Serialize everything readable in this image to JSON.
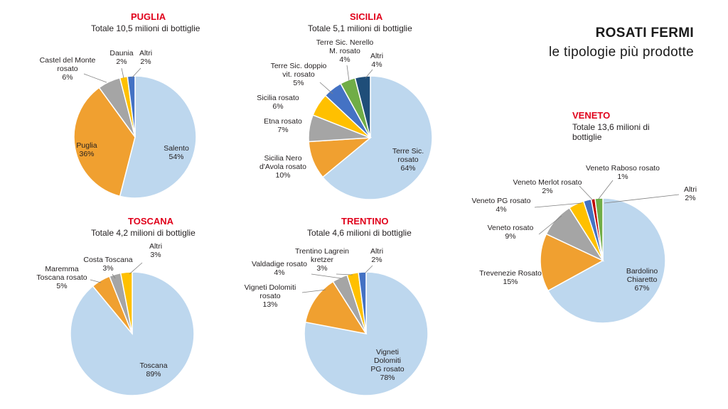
{
  "header": {
    "title_line1": "ROSATI FERMI",
    "title_line2": "le tipologie più prodotte"
  },
  "colors": {
    "region_title": "#e0001b",
    "slice_light_blue": "#bdd7ee",
    "slice_orange": "#f0a030",
    "slice_gray": "#a5a5a5",
    "slice_yellow": "#ffc000",
    "slice_blue": "#4472c4",
    "slice_green": "#70ad47",
    "slice_dark_blue": "#1f4e79",
    "slice_red": "#c00000"
  },
  "chart_data": [
    {
      "id": "puglia",
      "type": "pie",
      "title": "PUGLIA",
      "subtitle": "Totale 10,5 milioni di bottiglie",
      "slices": [
        {
          "label": "Salento",
          "value": 54,
          "pct": "54%",
          "color": "#bdd7ee"
        },
        {
          "label": "Puglia",
          "value": 36,
          "pct": "36%",
          "color": "#f0a030"
        },
        {
          "label": "Castel del Monte rosato",
          "value": 6,
          "pct": "6%",
          "color": "#a5a5a5"
        },
        {
          "label": "Daunia",
          "value": 2,
          "pct": "2%",
          "color": "#ffc000"
        },
        {
          "label": "Altri",
          "value": 2,
          "pct": "2%",
          "color": "#4472c4"
        }
      ]
    },
    {
      "id": "sicilia",
      "type": "pie",
      "title": "SICILIA",
      "subtitle": "Totale 5,1 milioni di bottiglie",
      "slices": [
        {
          "label": "Terre Sic. rosato",
          "value": 64,
          "pct": "64%",
          "color": "#bdd7ee"
        },
        {
          "label": "Sicilia Nero d'Avola rosato",
          "value": 10,
          "pct": "10%",
          "color": "#f0a030"
        },
        {
          "label": "Etna rosato",
          "value": 7,
          "pct": "7%",
          "color": "#a5a5a5"
        },
        {
          "label": "Sicilia rosato",
          "value": 6,
          "pct": "6%",
          "color": "#ffc000"
        },
        {
          "label": "Terre Sic. doppio vit. rosato",
          "value": 5,
          "pct": "5%",
          "color": "#4472c4"
        },
        {
          "label": "Terre Sic. Nerello M. rosato",
          "value": 4,
          "pct": "4%",
          "color": "#70ad47"
        },
        {
          "label": "Altri",
          "value": 4,
          "pct": "4%",
          "color": "#1f4e79"
        }
      ]
    },
    {
      "id": "toscana",
      "type": "pie",
      "title": "TOSCANA",
      "subtitle": "Totale 4,2 milioni di bottiglie",
      "slices": [
        {
          "label": "Toscana",
          "value": 89,
          "pct": "89%",
          "color": "#bdd7ee"
        },
        {
          "label": "Maremma Toscana rosato",
          "value": 5,
          "pct": "5%",
          "color": "#f0a030"
        },
        {
          "label": "Costa Toscana",
          "value": 3,
          "pct": "3%",
          "color": "#a5a5a5"
        },
        {
          "label": "Altri",
          "value": 3,
          "pct": "3%",
          "color": "#ffc000"
        }
      ]
    },
    {
      "id": "trentino",
      "type": "pie",
      "title": "TRENTINO",
      "subtitle": "Totale 4,6 milioni di bottiglie",
      "slices": [
        {
          "label": "Vigneti Dolomiti PG rosato",
          "value": 78,
          "pct": "78%",
          "color": "#bdd7ee"
        },
        {
          "label": "Vigneti Dolomiti rosato",
          "value": 13,
          "pct": "13%",
          "color": "#f0a030"
        },
        {
          "label": "Valdadige rosato",
          "value": 4,
          "pct": "4%",
          "color": "#a5a5a5"
        },
        {
          "label": "Trentino Lagrein kretzer",
          "value": 3,
          "pct": "3%",
          "color": "#ffc000"
        },
        {
          "label": "Altri",
          "value": 2,
          "pct": "2%",
          "color": "#4472c4"
        }
      ]
    },
    {
      "id": "veneto",
      "type": "pie",
      "title": "VENETO",
      "subtitle": "Totale 13,6 milioni di bottiglie",
      "slices": [
        {
          "label": "Bardolino Chiaretto",
          "value": 67,
          "pct": "67%",
          "color": "#bdd7ee"
        },
        {
          "label": "Trevenezie Rosato",
          "value": 15,
          "pct": "15%",
          "color": "#f0a030"
        },
        {
          "label": "Veneto rosato",
          "value": 9,
          "pct": "9%",
          "color": "#a5a5a5"
        },
        {
          "label": "Veneto PG rosato",
          "value": 4,
          "pct": "4%",
          "color": "#ffc000"
        },
        {
          "label": "Veneto Merlot rosato",
          "value": 2,
          "pct": "2%",
          "color": "#4472c4"
        },
        {
          "label": "Veneto Raboso rosato",
          "value": 1,
          "pct": "1%",
          "color": "#c00000"
        },
        {
          "label": "Altri",
          "value": 2,
          "pct": "2%",
          "color": "#70ad47"
        }
      ]
    }
  ]
}
